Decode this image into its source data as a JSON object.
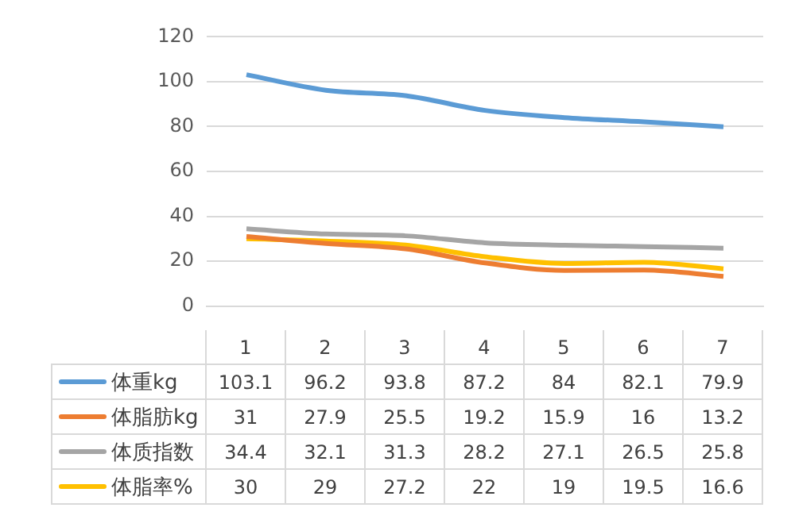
{
  "chart_data": {
    "type": "line",
    "categories": [
      "1",
      "2",
      "3",
      "4",
      "5",
      "6",
      "7"
    ],
    "series": [
      {
        "name": "体重kg",
        "color": "#5b9bd5",
        "values": [
          103.1,
          96.2,
          93.8,
          87.2,
          84,
          82.1,
          79.9
        ]
      },
      {
        "name": "体脂肪kg",
        "color": "#ed7d31",
        "values": [
          31,
          27.9,
          25.5,
          19.2,
          15.9,
          16,
          13.2
        ]
      },
      {
        "name": "体质指数",
        "color": "#a5a5a5",
        "values": [
          34.4,
          32.1,
          31.3,
          28.2,
          27.1,
          26.5,
          25.8
        ]
      },
      {
        "name": "体脂率%",
        "color": "#ffc000",
        "values": [
          30,
          29,
          27.2,
          22,
          19,
          19.5,
          16.6
        ]
      }
    ],
    "ylim": [
      0,
      120
    ],
    "yticks": [
      0,
      20,
      40,
      60,
      80,
      100,
      120
    ],
    "grid": "y",
    "legend": "bottom",
    "data_labels": true,
    "marker": "none"
  }
}
